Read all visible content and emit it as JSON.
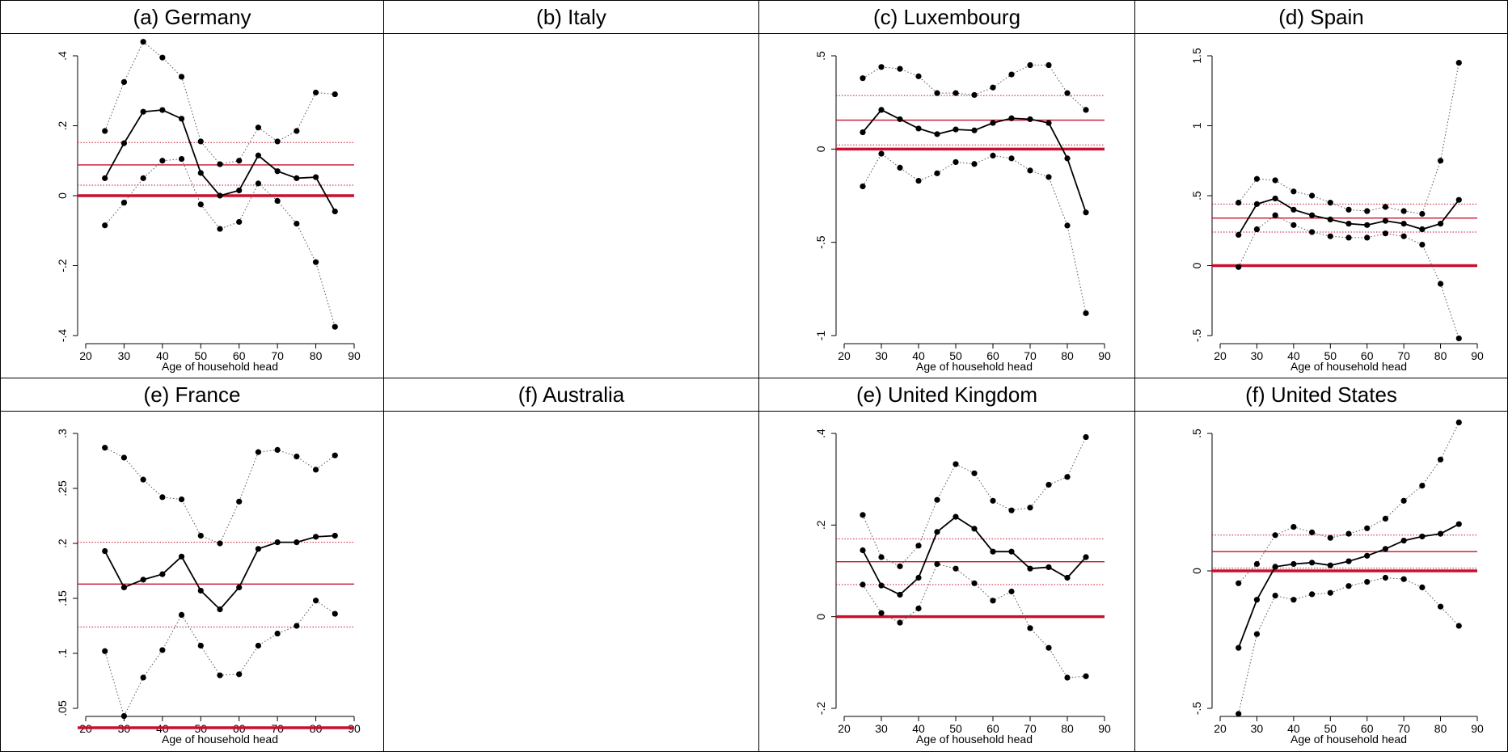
{
  "chart_data": [
    {
      "type": "line",
      "title": "(a) Germany",
      "xlabel": "Age of household head",
      "ylabel": "",
      "xlim": [
        20,
        90
      ],
      "ylim": [
        -0.4,
        0.4
      ],
      "xticks": [
        20,
        30,
        40,
        50,
        60,
        70,
        80,
        90
      ],
      "yticks": [
        -0.4,
        -0.2,
        0,
        0.2,
        0.4
      ],
      "ytick_labels": [
        "-.4",
        "-.2",
        "0",
        ".2",
        ".4"
      ],
      "x": [
        25,
        30,
        35,
        40,
        45,
        50,
        55,
        60,
        65,
        70,
        75,
        80,
        85
      ],
      "series": [
        {
          "role": "estimate",
          "values": [
            0.05,
            0.15,
            0.24,
            0.245,
            0.22,
            0.065,
            0.0,
            0.015,
            0.115,
            0.07,
            0.05,
            0.053,
            -0.045
          ]
        },
        {
          "role": "upper",
          "values": [
            0.185,
            0.325,
            0.44,
            0.395,
            0.34,
            0.155,
            0.09,
            0.1,
            0.195,
            0.155,
            0.185,
            0.295,
            0.29
          ]
        },
        {
          "role": "lower",
          "values": [
            -0.085,
            -0.02,
            0.05,
            0.1,
            0.105,
            -0.025,
            -0.095,
            -0.075,
            0.035,
            -0.015,
            -0.08,
            -0.19,
            -0.375
          ]
        }
      ],
      "mean": 0.088,
      "mean_ci": [
        0.03,
        0.152
      ]
    },
    {
      "type": "line",
      "title": "(b) Italy",
      "empty": true
    },
    {
      "type": "line",
      "title": "(c) Luxembourg",
      "xlabel": "Age of household head",
      "ylabel": "",
      "xlim": [
        20,
        90
      ],
      "ylim": [
        -1,
        0.5
      ],
      "xticks": [
        20,
        30,
        40,
        50,
        60,
        70,
        80,
        90
      ],
      "yticks": [
        -1,
        -0.5,
        0,
        0.5
      ],
      "ytick_labels": [
        "-1",
        "-.5",
        "0",
        ".5"
      ],
      "x": [
        25,
        30,
        35,
        40,
        45,
        50,
        55,
        60,
        65,
        70,
        75,
        80,
        85
      ],
      "series": [
        {
          "role": "estimate",
          "values": [
            0.09,
            0.21,
            0.16,
            0.11,
            0.08,
            0.105,
            0.1,
            0.14,
            0.165,
            0.16,
            0.14,
            -0.05,
            -0.34
          ]
        },
        {
          "role": "upper",
          "values": [
            0.38,
            0.44,
            0.43,
            0.39,
            0.3,
            0.3,
            0.29,
            0.33,
            0.4,
            0.45,
            0.45,
            0.3,
            0.21
          ]
        },
        {
          "role": "lower",
          "values": [
            -0.2,
            -0.025,
            -0.1,
            -0.17,
            -0.13,
            -0.07,
            -0.08,
            -0.035,
            -0.05,
            -0.115,
            -0.15,
            -0.41,
            -0.88
          ]
        }
      ],
      "mean": 0.155,
      "mean_ci": [
        0.022,
        0.287
      ]
    },
    {
      "type": "line",
      "title": "(d) Spain",
      "xlabel": "Age of household head",
      "ylabel": "",
      "xlim": [
        20,
        90
      ],
      "ylim": [
        -0.5,
        1.5
      ],
      "xticks": [
        20,
        30,
        40,
        50,
        60,
        70,
        80,
        90
      ],
      "yticks": [
        -0.5,
        0,
        0.5,
        1,
        1.5
      ],
      "ytick_labels": [
        "-.5",
        "0",
        ".5",
        "1",
        "1.5"
      ],
      "x": [
        25,
        30,
        35,
        40,
        45,
        50,
        55,
        60,
        65,
        70,
        75,
        80,
        85
      ],
      "series": [
        {
          "role": "estimate",
          "values": [
            0.22,
            0.44,
            0.48,
            0.4,
            0.36,
            0.33,
            0.3,
            0.29,
            0.32,
            0.3,
            0.26,
            0.3,
            0.47
          ]
        },
        {
          "role": "upper",
          "values": [
            0.45,
            0.62,
            0.61,
            0.53,
            0.5,
            0.45,
            0.4,
            0.39,
            0.42,
            0.39,
            0.37,
            0.75,
            1.45
          ]
        },
        {
          "role": "lower",
          "values": [
            -0.01,
            0.26,
            0.36,
            0.29,
            0.24,
            0.21,
            0.2,
            0.2,
            0.23,
            0.21,
            0.15,
            -0.13,
            -0.52
          ]
        }
      ],
      "mean": 0.34,
      "mean_ci": [
        0.24,
        0.44
      ]
    },
    {
      "type": "line",
      "title": "(e) France",
      "xlabel": "Age of household head",
      "ylabel": "",
      "xlim": [
        20,
        90
      ],
      "ylim": [
        0.05,
        0.3
      ],
      "xticks": [
        20,
        30,
        40,
        50,
        60,
        70,
        80,
        90
      ],
      "yticks": [
        0.05,
        0.1,
        0.15,
        0.2,
        0.25,
        0.3
      ],
      "ytick_labels": [
        ".05",
        ".1",
        ".15",
        ".2",
        ".25",
        ".3"
      ],
      "x": [
        25,
        30,
        35,
        40,
        45,
        50,
        55,
        60,
        65,
        70,
        75,
        80,
        85
      ],
      "series": [
        {
          "role": "estimate",
          "values": [
            0.193,
            0.16,
            0.167,
            0.172,
            0.188,
            0.157,
            0.14,
            0.16,
            0.195,
            0.201,
            0.201,
            0.206,
            0.207
          ]
        },
        {
          "role": "upper",
          "values": [
            0.287,
            0.278,
            0.258,
            0.242,
            0.24,
            0.207,
            0.2,
            0.238,
            0.283,
            0.285,
            0.279,
            0.267,
            0.28
          ]
        },
        {
          "role": "lower",
          "values": [
            0.102,
            0.043,
            0.078,
            0.103,
            0.135,
            0.107,
            0.08,
            0.081,
            0.107,
            0.118,
            0.125,
            0.148,
            0.136
          ]
        }
      ],
      "mean": 0.163,
      "mean_ci": [
        0.124,
        0.201
      ],
      "zero_line": 0.0
    },
    {
      "type": "line",
      "title": "(f) Australia",
      "empty": true
    },
    {
      "type": "line",
      "title": "(e) United Kingdom",
      "xlabel": "Age of household head",
      "ylabel": "",
      "xlim": [
        20,
        90
      ],
      "ylim": [
        -0.2,
        0.4
      ],
      "xticks": [
        20,
        30,
        40,
        50,
        60,
        70,
        80,
        90
      ],
      "yticks": [
        -0.2,
        0,
        0.2,
        0.4
      ],
      "ytick_labels": [
        "-.2",
        "0",
        ".2",
        ".4"
      ],
      "x": [
        25,
        30,
        35,
        40,
        45,
        50,
        55,
        60,
        65,
        70,
        75,
        80,
        85
      ],
      "series": [
        {
          "role": "estimate",
          "values": [
            0.145,
            0.068,
            0.048,
            0.085,
            0.185,
            0.218,
            0.192,
            0.142,
            0.142,
            0.105,
            0.108,
            0.085,
            0.13
          ]
        },
        {
          "role": "upper",
          "values": [
            0.222,
            0.13,
            0.11,
            0.155,
            0.255,
            0.333,
            0.313,
            0.253,
            0.232,
            0.238,
            0.288,
            0.305,
            0.392
          ]
        },
        {
          "role": "lower",
          "values": [
            0.07,
            0.008,
            -0.013,
            0.018,
            0.115,
            0.105,
            0.073,
            0.035,
            0.055,
            -0.025,
            -0.068,
            -0.133,
            -0.13
          ]
        }
      ],
      "mean": 0.12,
      "mean_ci": [
        0.07,
        0.17
      ]
    },
    {
      "type": "line",
      "title": "(f) United States",
      "xlabel": "Age of household head",
      "ylabel": "",
      "xlim": [
        20,
        90
      ],
      "ylim": [
        -0.5,
        0.5
      ],
      "xticks": [
        20,
        30,
        40,
        50,
        60,
        70,
        80,
        90
      ],
      "yticks": [
        -0.5,
        0,
        0.5
      ],
      "ytick_labels": [
        "-.5",
        "0",
        ".5"
      ],
      "x": [
        25,
        30,
        35,
        40,
        45,
        50,
        55,
        60,
        65,
        70,
        75,
        80,
        85
      ],
      "series": [
        {
          "role": "estimate",
          "values": [
            -0.28,
            -0.105,
            0.015,
            0.025,
            0.03,
            0.02,
            0.035,
            0.055,
            0.08,
            0.11,
            0.125,
            0.135,
            0.17
          ]
        },
        {
          "role": "upper",
          "values": [
            -0.045,
            0.025,
            0.13,
            0.16,
            0.14,
            0.12,
            0.135,
            0.155,
            0.19,
            0.255,
            0.31,
            0.405,
            0.54
          ]
        },
        {
          "role": "lower",
          "values": [
            -0.52,
            -0.23,
            -0.09,
            -0.105,
            -0.085,
            -0.08,
            -0.055,
            -0.04,
            -0.025,
            -0.03,
            -0.06,
            -0.13,
            -0.2
          ]
        }
      ],
      "mean": 0.07,
      "mean_ci": [
        0.01,
        0.13
      ]
    }
  ]
}
